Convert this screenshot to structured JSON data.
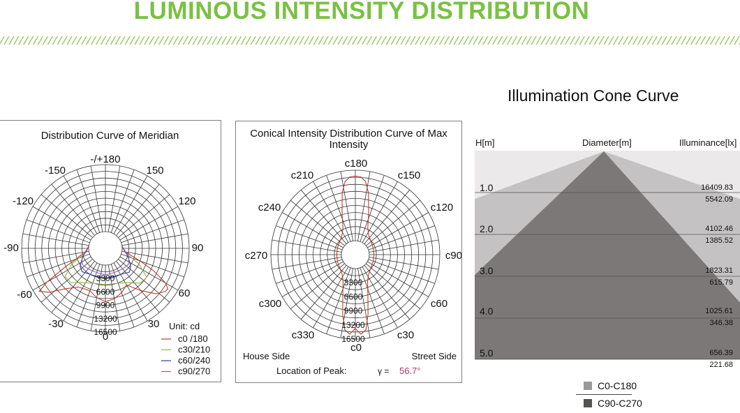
{
  "header": {
    "title": "LUMINOUS INTENSITY DISTRIBUTION"
  },
  "chart_data": [
    {
      "type": "polar",
      "title": "Distribution Curve of Meridian",
      "angle_labels": [
        "-/+180",
        "-150",
        "150",
        "-120",
        "120",
        "-90",
        "90",
        "-60",
        "60",
        "-30",
        "30",
        "0"
      ],
      "radial_tick_labels": [
        "3300",
        "6600",
        "9900",
        "13200",
        "16500"
      ],
      "radial_max": 16500,
      "unit": "Unit: cd",
      "series": [
        {
          "name": "c0 /180",
          "color": "#c0392b",
          "points": [
            [
              -100,
              0
            ],
            [
              -90,
              300
            ],
            [
              -80,
              600
            ],
            [
              -75,
              2100
            ],
            [
              -70,
              3500
            ],
            [
              -65,
              7000
            ],
            [
              -60,
              12500
            ],
            [
              -57,
              15300
            ],
            [
              -52,
              13500
            ],
            [
              -45,
              10000
            ],
            [
              -35,
              7500
            ],
            [
              -20,
              7000
            ],
            [
              -10,
              8200
            ],
            [
              0,
              9000
            ],
            [
              10,
              8500
            ],
            [
              20,
              7500
            ],
            [
              30,
              6300
            ],
            [
              40,
              9500
            ],
            [
              48,
              12600
            ],
            [
              54,
              14000
            ],
            [
              57,
              14200
            ],
            [
              60,
              13000
            ],
            [
              65,
              9000
            ],
            [
              70,
              5000
            ],
            [
              75,
              2300
            ],
            [
              80,
              900
            ],
            [
              90,
              300
            ],
            [
              100,
              0
            ]
          ]
        },
        {
          "name": "c30/210",
          "color": "#8bbb3c",
          "points": [
            [
              -90,
              200
            ],
            [
              -75,
              1500
            ],
            [
              -65,
              5000
            ],
            [
              -55,
              8000
            ],
            [
              -45,
              7800
            ],
            [
              -35,
              6200
            ],
            [
              -20,
              5000
            ],
            [
              0,
              4800
            ],
            [
              20,
              5000
            ],
            [
              35,
              6200
            ],
            [
              45,
              8000
            ],
            [
              55,
              8300
            ],
            [
              65,
              5000
            ],
            [
              75,
              1500
            ],
            [
              90,
              200
            ]
          ]
        },
        {
          "name": "c60/240",
          "color": "#2e3aa8",
          "points": [
            [
              -90,
              200
            ],
            [
              -70,
              1800
            ],
            [
              -55,
              3500
            ],
            [
              -45,
              4000
            ],
            [
              -30,
              3300
            ],
            [
              -15,
              3100
            ],
            [
              0,
              3200
            ],
            [
              15,
              3100
            ],
            [
              30,
              3300
            ],
            [
              45,
              4200
            ],
            [
              55,
              3500
            ],
            [
              70,
              1800
            ],
            [
              90,
              200
            ]
          ]
        },
        {
          "name": "c90/270",
          "color": "#9b59b6",
          "points": [
            [
              -90,
              300
            ],
            [
              -70,
              2000
            ],
            [
              -55,
              2800
            ],
            [
              -40,
              2500
            ],
            [
              -20,
              2200
            ],
            [
              0,
              2400
            ],
            [
              20,
              2200
            ],
            [
              40,
              2500
            ],
            [
              55,
              2800
            ],
            [
              70,
              2000
            ],
            [
              90,
              300
            ]
          ]
        }
      ]
    },
    {
      "type": "polar",
      "title": "Conical Intensity Distribution Curve of Max Intensity",
      "angle_labels": [
        "c180",
        "c210",
        "c150",
        "c240",
        "c120",
        "c270",
        "c90",
        "c300",
        "c60",
        "c330",
        "c30",
        "c0"
      ],
      "radial_tick_labels": [
        "3300",
        "6600",
        "9900",
        "13200",
        "16500"
      ],
      "radial_max": 16500,
      "side_labels": [
        "House Side",
        "Street Side"
      ],
      "peak_label": "Location of Peak:",
      "peak_gamma_symbol": "γ =",
      "peak_value": "56.7°",
      "series": [
        {
          "name": "max",
          "color": "#c0392b",
          "points": [
            [
              0,
              14000
            ],
            [
              4,
              15400
            ],
            [
              8,
              14500
            ],
            [
              12,
              11000
            ],
            [
              18,
              6200
            ],
            [
              25,
              3500
            ],
            [
              35,
              2200
            ],
            [
              50,
              1500
            ],
            [
              70,
              1200
            ],
            [
              90,
              1100
            ],
            [
              110,
              1200
            ],
            [
              130,
              1500
            ],
            [
              145,
              2200
            ],
            [
              155,
              3600
            ],
            [
              162,
              6800
            ],
            [
              168,
              11500
            ],
            [
              172,
              14000
            ],
            [
              176,
              15000
            ],
            [
              180,
              15100
            ],
            [
              184,
              15000
            ],
            [
              188,
              14000
            ],
            [
              192,
              11500
            ],
            [
              198,
              6800
            ],
            [
              205,
              3600
            ],
            [
              215,
              2200
            ],
            [
              230,
              1500
            ],
            [
              250,
              1200
            ],
            [
              270,
              1100
            ],
            [
              290,
              1200
            ],
            [
              310,
              1500
            ],
            [
              325,
              2200
            ],
            [
              335,
              3500
            ],
            [
              342,
              6200
            ],
            [
              348,
              11000
            ],
            [
              352,
              14500
            ],
            [
              356,
              15400
            ],
            [
              360,
              14000
            ]
          ]
        }
      ]
    },
    {
      "type": "area",
      "title": "Illumination Cone Curve",
      "xlabel": "Diameter[m]",
      "ylabel": "H[m]",
      "right_label": "Illuminance[lx]",
      "levels": [
        "1.0",
        "2.0",
        "3.0",
        "4.0",
        "5.0"
      ],
      "illuminance_c0": [
        "16409.83",
        "4102.46",
        "1823.31",
        "1025.61",
        "656.39"
      ],
      "illuminance_c90": [
        "5542.09",
        "1385.52",
        "615.79",
        "346.38",
        "221.68"
      ],
      "series": [
        {
          "name": "C0-C180",
          "color": "#c4c2c2"
        },
        {
          "name": "C90-C270",
          "color": "#7d7878"
        }
      ]
    }
  ]
}
